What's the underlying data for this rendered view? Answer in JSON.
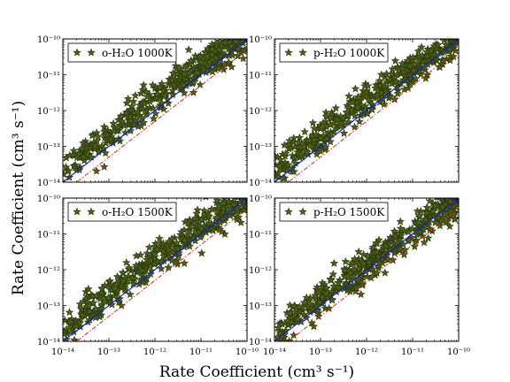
{
  "figure": {
    "ylabel": "Rate Coefficient (cm³ s⁻¹)",
    "xlabel": "Rate Coefficient (cm³ s⁻¹)"
  },
  "chart_data": [
    {
      "type": "scatter",
      "legend_label": "o-H₂O 1000K",
      "x_scale": "log",
      "y_scale": "log",
      "xlim": [
        1e-14,
        1e-10
      ],
      "ylim": [
        1e-14,
        1e-10
      ],
      "x_tick_labels": [
        "10⁻¹⁴",
        "10⁻¹³",
        "10⁻¹²",
        "10⁻¹¹",
        "10⁻¹⁰"
      ],
      "y_tick_labels": [
        "10⁻¹⁴",
        "10⁻¹³",
        "10⁻¹²",
        "10⁻¹¹",
        "10⁻¹⁰"
      ],
      "cloud_points": [
        [
          -14,
          -13.75
        ],
        [
          -13.5,
          -13.1
        ],
        [
          -13,
          -12.85
        ],
        [
          -12.5,
          -12.15
        ],
        [
          -12,
          -11.6
        ],
        [
          -11.5,
          -11.2
        ],
        [
          -11,
          -10.7
        ],
        [
          -10.5,
          -10.3
        ],
        [
          -10,
          -10
        ]
      ],
      "spread_dex": 0.3,
      "reference_lines": [
        "y = x",
        "y = x / 2"
      ]
    },
    {
      "type": "scatter",
      "legend_label": "p-H₂O 1000K",
      "x_scale": "log",
      "y_scale": "log",
      "xlim": [
        1e-14,
        1e-10
      ],
      "ylim": [
        1e-14,
        1e-10
      ],
      "x_tick_labels": [
        "10⁻¹⁴",
        "10⁻¹³",
        "10⁻¹²",
        "10⁻¹¹",
        "10⁻¹⁰"
      ],
      "y_tick_labels": [
        "10⁻¹⁴",
        "10⁻¹³",
        "10⁻¹²",
        "10⁻¹¹",
        "10⁻¹⁰"
      ],
      "cloud_points": [
        [
          -14,
          -13.65
        ],
        [
          -13.5,
          -13.15
        ],
        [
          -13,
          -12.7
        ],
        [
          -12.5,
          -12.2
        ],
        [
          -12,
          -11.75
        ],
        [
          -11.5,
          -11.3
        ],
        [
          -11,
          -10.8
        ],
        [
          -10.5,
          -10.35
        ],
        [
          -10,
          -10.1
        ]
      ],
      "spread_dex": 0.28,
      "reference_lines": [
        "y = x",
        "y = x / 2"
      ]
    },
    {
      "type": "scatter",
      "legend_label": "o-H₂O 1500K",
      "x_scale": "log",
      "y_scale": "log",
      "xlim": [
        1e-14,
        1e-10
      ],
      "ylim": [
        1e-14,
        1e-10
      ],
      "x_tick_labels": [
        "10⁻¹⁴",
        "10⁻¹³",
        "10⁻¹²",
        "10⁻¹¹",
        "10⁻¹⁰"
      ],
      "y_tick_labels": [
        "10⁻¹⁴",
        "10⁻¹³",
        "10⁻¹²",
        "10⁻¹¹",
        "10⁻¹⁰"
      ],
      "cloud_points": [
        [
          -14,
          -13.8
        ],
        [
          -13.5,
          -13.1
        ],
        [
          -13,
          -12.65
        ],
        [
          -12.5,
          -12.2
        ],
        [
          -12,
          -11.7
        ],
        [
          -11.5,
          -11.25
        ],
        [
          -11,
          -10.8
        ],
        [
          -10.5,
          -10.35
        ],
        [
          -10,
          -10.05
        ]
      ],
      "spread_dex": 0.3,
      "reference_lines": [
        "y = x",
        "y = x / 2"
      ]
    },
    {
      "type": "scatter",
      "legend_label": "p-H₂O 1500K",
      "x_scale": "log",
      "y_scale": "log",
      "xlim": [
        1e-14,
        1e-10
      ],
      "ylim": [
        1e-14,
        1e-10
      ],
      "x_tick_labels": [
        "10⁻¹⁴",
        "10⁻¹³",
        "10⁻¹²",
        "10⁻¹¹",
        "10⁻¹⁰"
      ],
      "y_tick_labels": [
        "10⁻¹⁴",
        "10⁻¹³",
        "10⁻¹²",
        "10⁻¹¹",
        "10⁻¹⁰"
      ],
      "cloud_points": [
        [
          -14,
          -13.9
        ],
        [
          -13.5,
          -13.3
        ],
        [
          -13,
          -12.8
        ],
        [
          -12.5,
          -12.35
        ],
        [
          -12,
          -11.9
        ],
        [
          -11.5,
          -11.4
        ],
        [
          -11,
          -10.9
        ],
        [
          -10.5,
          -10.4
        ],
        [
          -10,
          -10.1
        ]
      ],
      "spread_dex": 0.3,
      "reference_lines": [
        "y = x",
        "y = x / 2"
      ]
    }
  ],
  "colors": {
    "marker_fill": "#5a5a10",
    "marker_edge": "#1e3b12",
    "identity_line": "#1a1ad0",
    "half_line": "#dd2222",
    "axes": "#000000"
  },
  "legend": {
    "marker_icon": "star-icon",
    "placement": "upper-left"
  }
}
